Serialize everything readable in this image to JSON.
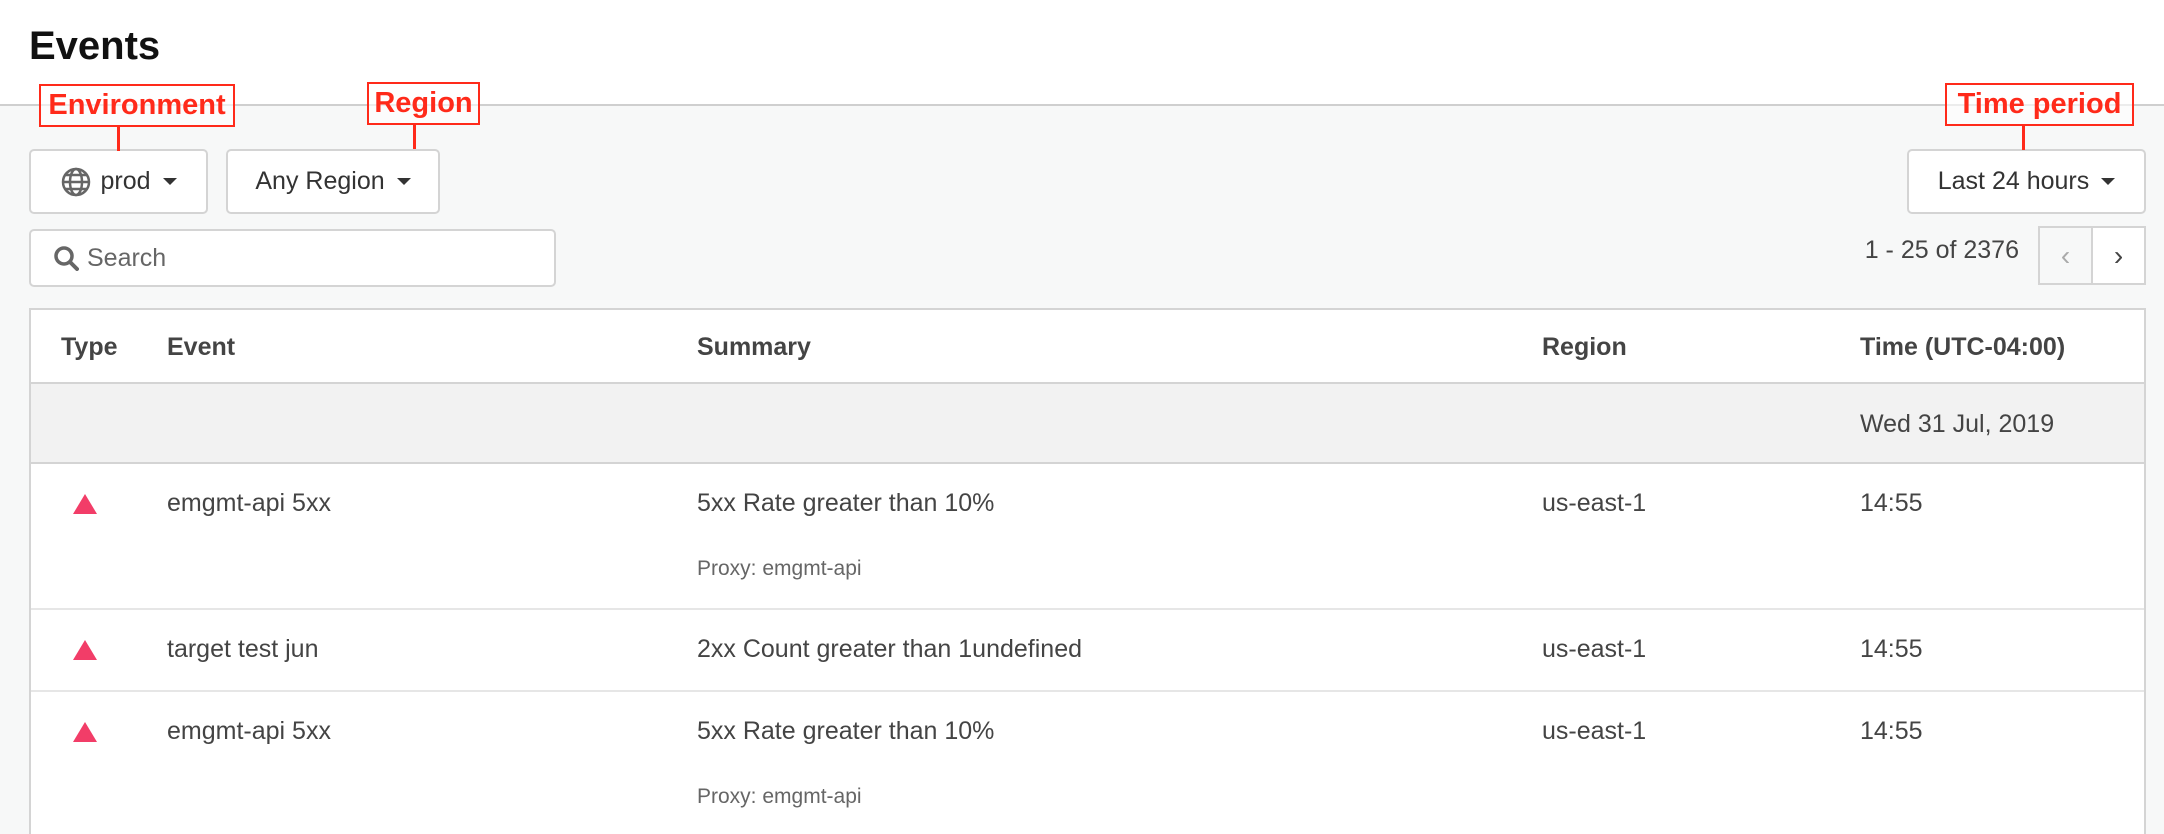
{
  "page": {
    "title": "Events"
  },
  "annotations": {
    "environment": "Environment",
    "region": "Region",
    "time_period": "Time period",
    "color": "#ff2a1a"
  },
  "filters": {
    "environment": {
      "icon": "globe-icon",
      "value": "prod"
    },
    "region": {
      "value": "Any Region"
    },
    "time_period": {
      "value": "Last 24 hours"
    }
  },
  "search": {
    "placeholder": "Search",
    "value": ""
  },
  "pagination": {
    "text": "1 - 25 of 2376",
    "prev": "‹",
    "next": "›"
  },
  "table": {
    "columns": [
      "Type",
      "Event",
      "Summary",
      "Region",
      "Time (UTC-04:00)"
    ],
    "group_date": "Wed 31 Jul, 2019",
    "rows": [
      {
        "type": "alert-triangle-icon",
        "event": "emgmt-api 5xx",
        "summary": "5xx Rate greater than 10%",
        "detail": "Proxy: emgmt-api",
        "region": "us-east-1",
        "time": "14:55"
      },
      {
        "type": "alert-triangle-icon",
        "event": "target test jun",
        "summary": "2xx Count greater than 1undefined",
        "detail": "",
        "region": "us-east-1",
        "time": "14:55"
      },
      {
        "type": "alert-triangle-icon",
        "event": "emgmt-api 5xx",
        "summary": "5xx Rate greater than 10%",
        "detail": "Proxy: emgmt-api",
        "region": "us-east-1",
        "time": "14:55"
      }
    ],
    "alert_color": "#f23d68"
  }
}
